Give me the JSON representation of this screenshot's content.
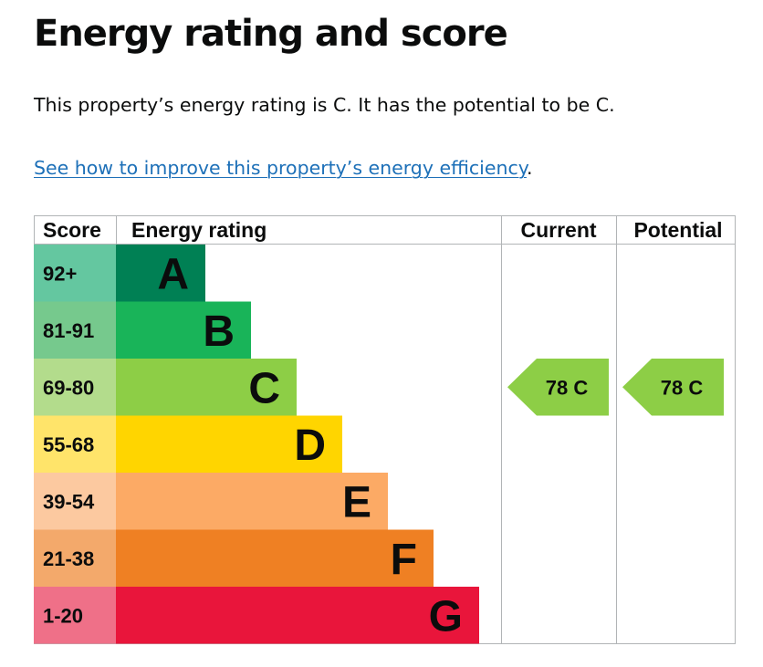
{
  "page": {
    "title": "Energy rating and score",
    "summary": "This property’s energy rating is C. It has the potential to be C.",
    "link_text": "See how to improve this property’s energy efficiency",
    "link_suffix": "."
  },
  "chart_data": {
    "type": "bar",
    "headers": {
      "score": "Score",
      "rating": "Energy rating",
      "current": "Current",
      "potential": "Potential"
    },
    "bands": [
      {
        "score": "92+",
        "letter": "A",
        "color": "#008054",
        "score_bg": "#64c7a0"
      },
      {
        "score": "81-91",
        "letter": "B",
        "color": "#19b459",
        "score_bg": "#76c98d"
      },
      {
        "score": "69-80",
        "letter": "C",
        "color": "#8dce46",
        "score_bg": "#b3dc8c"
      },
      {
        "score": "55-68",
        "letter": "D",
        "color": "#ffd500",
        "score_bg": "#ffe46a"
      },
      {
        "score": "39-54",
        "letter": "E",
        "color": "#fcaa65",
        "score_bg": "#fcc9a0"
      },
      {
        "score": "21-38",
        "letter": "F",
        "color": "#ef8023",
        "score_bg": "#f3a96b"
      },
      {
        "score": "1-20",
        "letter": "G",
        "color": "#e9153b",
        "score_bg": "#ef7088"
      }
    ],
    "current": {
      "value": 78,
      "letter": "C",
      "label": "78  C",
      "color": "#8dce46"
    },
    "potential": {
      "value": 78,
      "letter": "C",
      "label": "78  C",
      "color": "#8dce46"
    }
  }
}
